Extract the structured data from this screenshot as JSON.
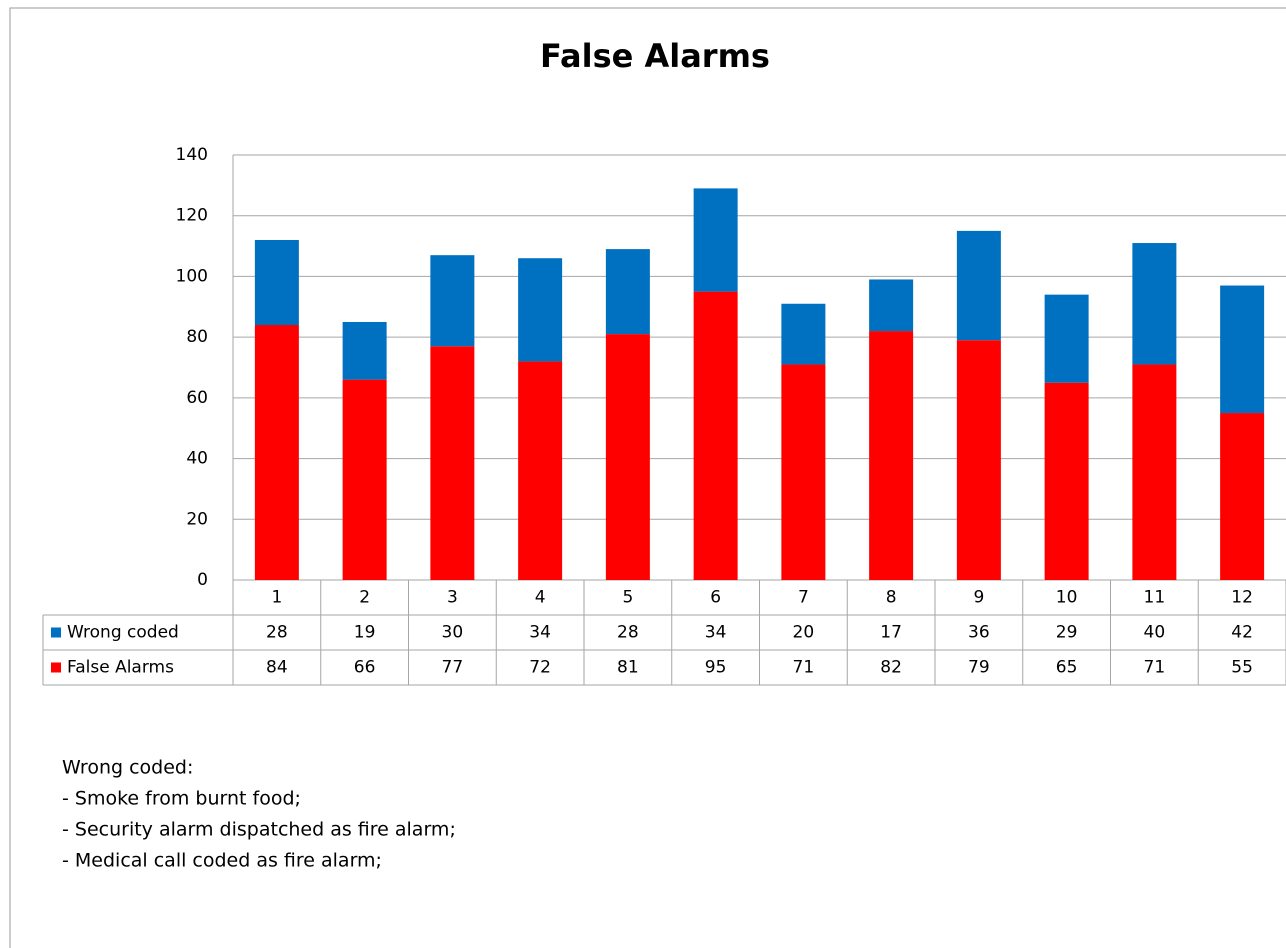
{
  "chart_data": {
    "type": "stacked_bar",
    "title": "False Alarms",
    "categories": [
      "1",
      "2",
      "3",
      "4",
      "5",
      "6",
      "7",
      "8",
      "9",
      "10",
      "11",
      "12"
    ],
    "series": [
      {
        "name": "Wrong coded",
        "color": "#0070c0",
        "values": [
          28,
          19,
          30,
          34,
          28,
          34,
          20,
          17,
          36,
          29,
          40,
          42
        ]
      },
      {
        "name": "False Alarms",
        "color": "#ff0000",
        "values": [
          84,
          66,
          77,
          72,
          81,
          95,
          71,
          82,
          79,
          65,
          71,
          55
        ]
      }
    ],
    "ylim": [
      0,
      140
    ],
    "yticks": [
      0,
      20,
      40,
      60,
      80,
      100,
      120,
      140
    ],
    "grid": true,
    "annotations": [
      "Wrong coded:",
      "- Smoke from burnt food;",
      "- Security alarm dispatched as fire alarm;",
      "- Medical call coded as fire alarm;"
    ]
  }
}
